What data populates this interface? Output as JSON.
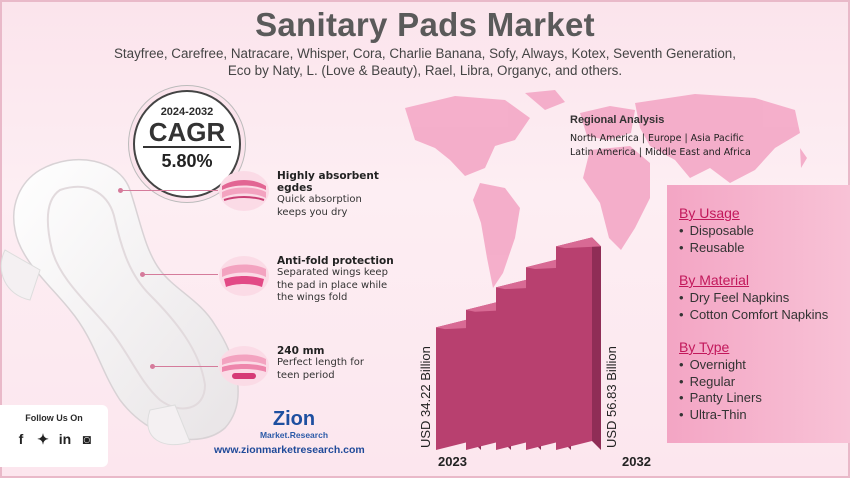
{
  "header": {
    "title": "Sanitary Pads Market",
    "subtitle_line1": "Stayfree, Carefree, Natracare, Whisper, Cora, Charlie Banana, Sofy, Always, Kotex, Seventh Generation,",
    "subtitle_line2": "Eco by Naty, L. (Love & Beauty), Rael, Libra, Organyc, and others."
  },
  "cagr": {
    "years": "2024-2032",
    "label": "CAGR",
    "value": "5.80%"
  },
  "regional": {
    "heading": "Regional Analysis",
    "line1": "North America | Europe | Asia Pacific",
    "line2": "Latin America | Middle East and Africa"
  },
  "features": [
    {
      "title": "Highly absorbent egdes",
      "desc": [
        "Quick absorption",
        "keeps you dry"
      ]
    },
    {
      "title": "Anti-fold protection",
      "desc": [
        "Separated wings keep",
        "the pad in place while",
        "the wings fold"
      ]
    },
    {
      "title": "240 mm",
      "desc": [
        "Perfect length for",
        "teen period"
      ]
    }
  ],
  "segments": [
    {
      "heading": "By Usage",
      "items": [
        "Disposable",
        "Reusable"
      ]
    },
    {
      "heading": "By Material",
      "items": [
        "Dry Feel Napkins",
        "Cotton Comfort Napkins"
      ]
    },
    {
      "heading": "By Type",
      "items": [
        "Overnight",
        "Regular",
        "Panty Liners",
        "Ultra-Thin"
      ]
    }
  ],
  "chart_data": {
    "type": "bar",
    "categories": [
      "2023",
      "",
      "",
      "",
      "2032"
    ],
    "values": [
      34.22,
      39.1,
      45.4,
      51.0,
      56.83
    ],
    "value_labels": [
      "USD 34.22 Billion",
      "",
      "",
      "",
      "USD 56.83 Billion"
    ],
    "colors": {
      "bar_front": "#b8406f",
      "bar_side": "#8f2d56",
      "bar_top": "#d86a94"
    }
  },
  "footer": {
    "follow": "Follow Us On",
    "social_icons": [
      "facebook-icon",
      "twitter-icon",
      "linkedin-icon",
      "instagram-icon"
    ],
    "logo_word": "Zion",
    "logo_sub": "Market.Research",
    "website": "www.zionmarketresearch.com"
  }
}
